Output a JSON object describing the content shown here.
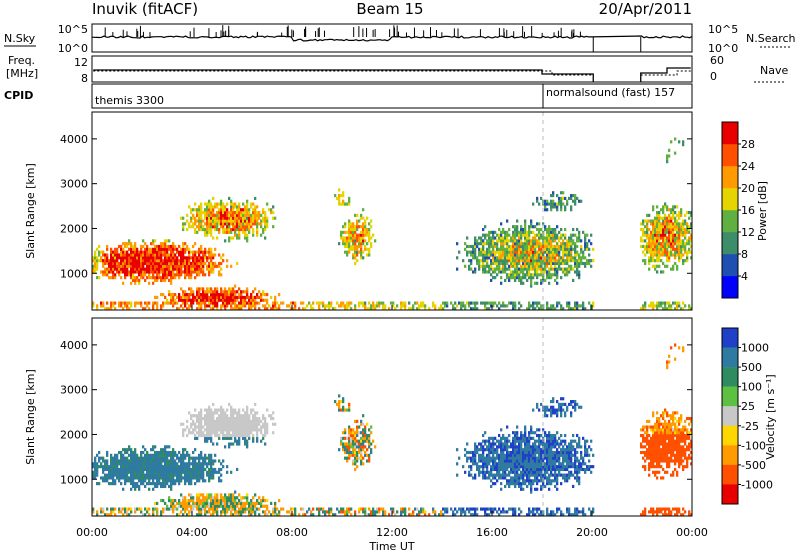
{
  "header": {
    "title_left": "Inuvik (fitACF)",
    "title_center": "Beam 15",
    "title_right": "20/Apr/2011"
  },
  "strips": {
    "nsky_label": "N.Sky",
    "nsky_ticks": [
      "10^5",
      "10^0"
    ],
    "nsearch_label": "N.Search",
    "nsearch_ticks": [
      "10^5",
      "10^0"
    ],
    "freq_label_1": "Freq.",
    "freq_label_2": "[MHz]",
    "freq_ticks": [
      "12",
      "8"
    ],
    "nave_label": "Nave",
    "nave_ticks": [
      "60",
      "0"
    ],
    "cpid_label": "CPID",
    "cpid_modes": [
      {
        "name": "themis 3300"
      },
      {
        "name": "normalsound (fast) 157"
      }
    ]
  },
  "chart_data": [
    {
      "type": "heatmap",
      "name": "power",
      "ylabel": "Slant Range [km]",
      "xlabel": "",
      "yticks": [
        "1000",
        "2000",
        "3000",
        "4000"
      ],
      "ylim": [
        180,
        4600
      ],
      "colorbar_label": "Power [dB]",
      "colorbar_ticks": [
        "4",
        "8",
        "12",
        "16",
        "20",
        "24",
        "28"
      ],
      "colors": [
        "#0000ff",
        "#1f4fb0",
        "#3d8c6a",
        "#5fb040",
        "#e6d400",
        "#ff9a00",
        "#ff5000",
        "#e80000"
      ]
    },
    {
      "type": "heatmap",
      "name": "velocity",
      "ylabel": "Slant Range [km]",
      "xlabel": "Time UT",
      "xticks": [
        "00:00",
        "04:00",
        "08:00",
        "12:00",
        "16:00",
        "20:00",
        "00:00"
      ],
      "yticks": [
        "1000",
        "2000",
        "3000",
        "4000"
      ],
      "ylim": [
        180,
        4600
      ],
      "colorbar_label": "Velocity [m s⁻¹]",
      "colorbar_ticks": [
        "1000",
        "500",
        "100",
        "25",
        "-25",
        "-100",
        "-500",
        "-1000"
      ],
      "colors": [
        "#2040c8",
        "#2e7aa0",
        "#2e8c60",
        "#5cc040",
        "#c8c8c8",
        "#ffd700",
        "#ff9a00",
        "#ff5000",
        "#e80000"
      ]
    }
  ]
}
